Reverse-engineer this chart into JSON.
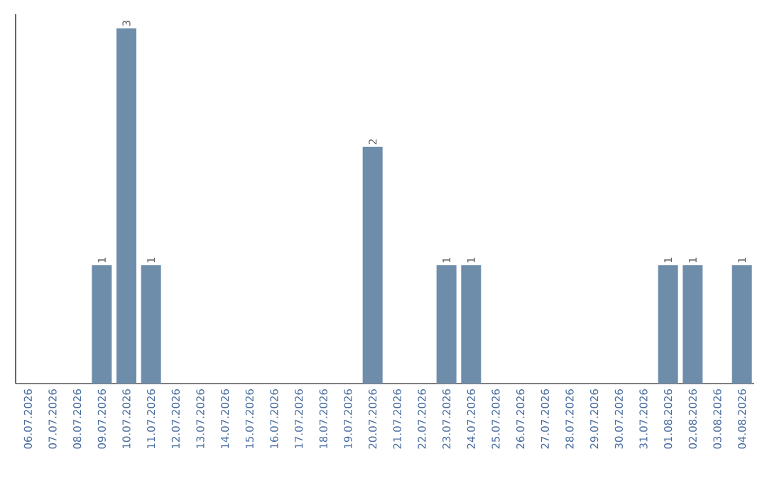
{
  "chart_data": {
    "type": "bar",
    "categories": [
      "06.07.2026",
      "07.07.2026",
      "08.07.2026",
      "09.07.2026",
      "10.07.2026",
      "11.07.2026",
      "12.07.2026",
      "13.07.2026",
      "14.07.2026",
      "15.07.2026",
      "16.07.2026",
      "17.07.2026",
      "18.07.2026",
      "19.07.2026",
      "20.07.2026",
      "21.07.2026",
      "22.07.2026",
      "23.07.2026",
      "24.07.2026",
      "25.07.2026",
      "26.07.2026",
      "27.07.2026",
      "28.07.2026",
      "29.07.2026",
      "30.07.2026",
      "31.07.2026",
      "01.08.2026",
      "02.08.2026",
      "03.08.2026",
      "04.08.2026"
    ],
    "values": [
      0,
      0,
      0,
      1,
      3,
      1,
      0,
      0,
      0,
      0,
      0,
      0,
      0,
      0,
      2,
      0,
      0,
      1,
      1,
      0,
      0,
      0,
      0,
      0,
      0,
      0,
      1,
      1,
      0,
      1
    ],
    "value_labels": [
      null,
      null,
      null,
      "1",
      "3",
      "1",
      null,
      null,
      null,
      null,
      null,
      null,
      null,
      null,
      "2",
      null,
      null,
      "1",
      "1",
      null,
      null,
      null,
      null,
      null,
      null,
      null,
      "1",
      "1",
      null,
      "1"
    ],
    "color": "#6d8dab"
  }
}
